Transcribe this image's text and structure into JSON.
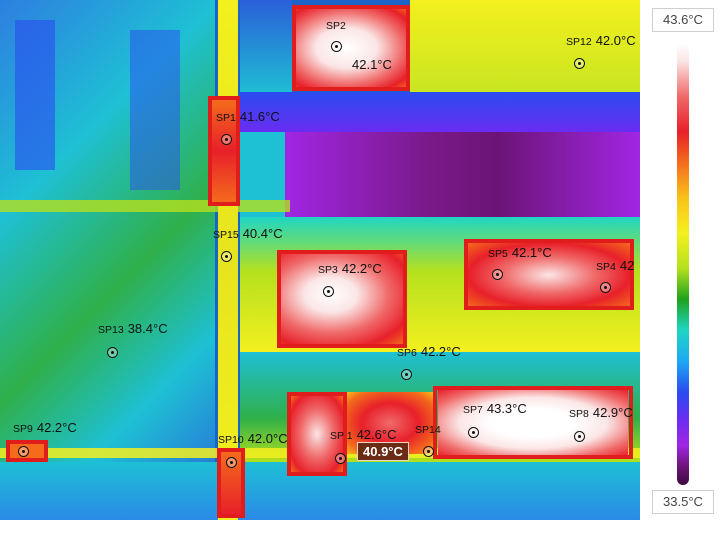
{
  "palette": {
    "max_temp": "43.6°C",
    "min_temp": "33.5°C"
  },
  "cursor_readout": "40.9°C",
  "spots": [
    {
      "id": "sp2",
      "name": "SP2",
      "temp": "42.1°C"
    },
    {
      "id": "sp12",
      "name": "SP12",
      "temp": "42.0°C"
    },
    {
      "id": "sp1_top",
      "name": "SP1",
      "temp": "41.6°C"
    },
    {
      "id": "sp15",
      "name": "SP15",
      "temp": "40.4°C"
    },
    {
      "id": "sp3",
      "name": "SP3",
      "temp": "42.2°C"
    },
    {
      "id": "sp5",
      "name": "SP5",
      "temp": "42.1°C"
    },
    {
      "id": "sp4",
      "name": "SP4",
      "temp": "42"
    },
    {
      "id": "sp13",
      "name": "SP13",
      "temp": "38.4°C"
    },
    {
      "id": "sp6",
      "name": "SP6",
      "temp": "42.2°C"
    },
    {
      "id": "sp7",
      "name": "SP7",
      "temp": "43.3°C"
    },
    {
      "id": "sp8",
      "name": "SP8",
      "temp": "42.9°C"
    },
    {
      "id": "sp9",
      "name": "SP9",
      "temp": "42.2°C"
    },
    {
      "id": "sp10",
      "name": "SP10",
      "temp": "42.0°C"
    },
    {
      "id": "sp1_low",
      "name": "SP 1",
      "temp": "42.6°C"
    },
    {
      "id": "sp14",
      "name": "SP14",
      "temp": ""
    }
  ],
  "colors": {
    "box": "#e01c1c",
    "hot": "#ffffff",
    "warm": "#e8202a",
    "yellow": "#f4f01e",
    "green": "#1fa21e",
    "cyan": "#1ed6c4",
    "blue": "#2a4cf0",
    "purple": "#a126e4"
  }
}
